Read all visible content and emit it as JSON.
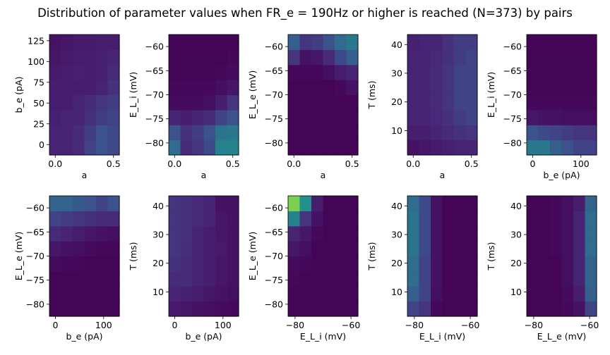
{
  "figure": {
    "title": "Distribution of parameter values when FR_e = 190Hz or higher is reached (N=373) by pairs"
  },
  "chart_data": [
    {
      "type": "heatmap",
      "xlabel": "a",
      "ylabel": "b_e (pA)",
      "xlim": [
        -0.05,
        0.55
      ],
      "ylim": [
        -12.5,
        132.5
      ],
      "xticks": [
        0.0,
        0.5
      ],
      "xticklabels": [
        "0.0",
        "0.5"
      ],
      "yticks": [
        0,
        25,
        50,
        75,
        100,
        125
      ],
      "yticklabels": [
        "0",
        "25",
        "50",
        "75",
        "100",
        "125"
      ],
      "z": [
        [
          0.1,
          0.1,
          0.12,
          0.2,
          0.25,
          0.22
        ],
        [
          0.1,
          0.1,
          0.12,
          0.18,
          0.25,
          0.22
        ],
        [
          0.09,
          0.1,
          0.1,
          0.14,
          0.18,
          0.2
        ],
        [
          0.08,
          0.08,
          0.1,
          0.12,
          0.15,
          0.18
        ],
        [
          0.08,
          0.08,
          0.08,
          0.08,
          0.1,
          0.14
        ],
        [
          0.07,
          0.08,
          0.09,
          0.08,
          0.09,
          0.12
        ],
        [
          0.06,
          0.07,
          0.08,
          0.08,
          0.09,
          0.1
        ],
        [
          0.05,
          0.06,
          0.07,
          0.07,
          0.08,
          0.08
        ]
      ]
    },
    {
      "type": "heatmap",
      "xlabel": "a",
      "ylabel": "E_L_i (mV)",
      "xlim": [
        -0.05,
        0.55
      ],
      "ylim": [
        -82.5,
        -57.5
      ],
      "xticks": [
        0.0,
        0.5
      ],
      "xticklabels": [
        "0.0",
        "0.5"
      ],
      "yticks": [
        -80,
        -75,
        -70,
        -65,
        -60
      ],
      "yticklabels": [
        "−80",
        "−75",
        "−70",
        "−65",
        "−60"
      ],
      "z": [
        [
          0.35,
          0.12,
          0.15,
          0.22,
          0.45,
          0.45
        ],
        [
          0.25,
          0.14,
          0.18,
          0.25,
          0.38,
          0.4
        ],
        [
          0.1,
          0.08,
          0.1,
          0.12,
          0.2,
          0.25
        ],
        [
          0.03,
          0.03,
          0.03,
          0.04,
          0.08,
          0.15
        ],
        [
          0.02,
          0.02,
          0.02,
          0.02,
          0.04,
          0.06
        ],
        [
          0.01,
          0.01,
          0.01,
          0.01,
          0.02,
          0.03
        ],
        [
          0.01,
          0.01,
          0.01,
          0.01,
          0.01,
          0.02
        ],
        [
          0.01,
          0.01,
          0.01,
          0.01,
          0.01,
          0.01
        ]
      ]
    },
    {
      "type": "heatmap",
      "xlabel": "a",
      "ylabel": "E_L_e (mV)",
      "xlim": [
        -0.05,
        0.55
      ],
      "ylim": [
        -82.5,
        -57.5
      ],
      "xticks": [
        0.0,
        0.5
      ],
      "xticklabels": [
        "0.0",
        "0.5"
      ],
      "yticks": [
        -80,
        -75,
        -70,
        -65,
        -60
      ],
      "yticklabels": [
        "−80",
        "−75",
        "−70",
        "−65",
        "−60"
      ],
      "z": [
        [
          0.01,
          0.01,
          0.01,
          0.01,
          0.01,
          0.01
        ],
        [
          0.01,
          0.01,
          0.01,
          0.01,
          0.01,
          0.01
        ],
        [
          0.01,
          0.01,
          0.01,
          0.01,
          0.01,
          0.01
        ],
        [
          0.01,
          0.01,
          0.01,
          0.01,
          0.01,
          0.01
        ],
        [
          0.01,
          0.01,
          0.01,
          0.01,
          0.02,
          0.05
        ],
        [
          0.02,
          0.02,
          0.02,
          0.04,
          0.08,
          0.1
        ],
        [
          0.15,
          0.05,
          0.06,
          0.12,
          0.22,
          0.3
        ],
        [
          0.3,
          0.15,
          0.18,
          0.25,
          0.35,
          0.4
        ]
      ]
    },
    {
      "type": "heatmap",
      "xlabel": "a",
      "ylabel": "T (ms)",
      "xlim": [
        -0.05,
        0.55
      ],
      "ylim": [
        1.5,
        43.5
      ],
      "xticks": [
        0.0,
        0.5
      ],
      "xticklabels": [
        "0.0",
        "0.5"
      ],
      "yticks": [
        10,
        20,
        30,
        40
      ],
      "yticklabels": [
        "10",
        "20",
        "30",
        "40"
      ],
      "z": [
        [
          0.05,
          0.06,
          0.07,
          0.09,
          0.1,
          0.1
        ],
        [
          0.08,
          0.08,
          0.1,
          0.12,
          0.14,
          0.15
        ],
        [
          0.1,
          0.1,
          0.11,
          0.14,
          0.18,
          0.2
        ],
        [
          0.1,
          0.1,
          0.12,
          0.15,
          0.2,
          0.2
        ],
        [
          0.1,
          0.1,
          0.12,
          0.15,
          0.2,
          0.2
        ],
        [
          0.1,
          0.1,
          0.12,
          0.15,
          0.2,
          0.2
        ],
        [
          0.1,
          0.1,
          0.11,
          0.14,
          0.18,
          0.2
        ],
        [
          0.09,
          0.1,
          0.1,
          0.14,
          0.18,
          0.18
        ]
      ]
    },
    {
      "type": "heatmap",
      "xlabel": "b_e (pA)",
      "ylabel": "E_L_i (mV)",
      "xlim": [
        -12.5,
        132.5
      ],
      "ylim": [
        -82.5,
        -57.5
      ],
      "xticks": [
        0,
        100
      ],
      "xticklabels": [
        "0",
        "100"
      ],
      "yticks": [
        -80,
        -75,
        -70,
        -65,
        -60
      ],
      "yticklabels": [
        "−80",
        "−75",
        "−70",
        "−65",
        "−60"
      ],
      "z": [
        [
          0.4,
          0.4,
          0.3,
          0.25,
          0.2,
          0.2
        ],
        [
          0.25,
          0.22,
          0.2,
          0.18,
          0.15,
          0.15
        ],
        [
          0.06,
          0.05,
          0.05,
          0.04,
          0.04,
          0.04
        ],
        [
          0.02,
          0.02,
          0.02,
          0.02,
          0.02,
          0.02
        ],
        [
          0.01,
          0.01,
          0.01,
          0.01,
          0.01,
          0.01
        ],
        [
          0.01,
          0.01,
          0.01,
          0.01,
          0.01,
          0.01
        ],
        [
          0.01,
          0.01,
          0.01,
          0.01,
          0.01,
          0.01
        ],
        [
          0.01,
          0.01,
          0.01,
          0.01,
          0.01,
          0.01
        ]
      ]
    },
    {
      "type": "heatmap",
      "xlabel": "b_e (pA)",
      "ylabel": "E_L_e (mV)",
      "xlim": [
        -12.5,
        132.5
      ],
      "ylim": [
        -82.5,
        -57.5
      ],
      "xticks": [
        0,
        100
      ],
      "xticklabels": [
        "0",
        "100"
      ],
      "yticks": [
        -80,
        -75,
        -70,
        -65,
        -60
      ],
      "yticklabels": [
        "−80",
        "−75",
        "−70",
        "−65",
        "−60"
      ],
      "z": [
        [
          0.01,
          0.01,
          0.01,
          0.01,
          0.01,
          0.01
        ],
        [
          0.01,
          0.01,
          0.01,
          0.01,
          0.01,
          0.01
        ],
        [
          0.01,
          0.01,
          0.01,
          0.01,
          0.01,
          0.01
        ],
        [
          0.03,
          0.02,
          0.02,
          0.01,
          0.01,
          0.01
        ],
        [
          0.06,
          0.05,
          0.04,
          0.03,
          0.02,
          0.02
        ],
        [
          0.12,
          0.1,
          0.08,
          0.06,
          0.05,
          0.04
        ],
        [
          0.2,
          0.18,
          0.16,
          0.14,
          0.12,
          0.12
        ],
        [
          0.32,
          0.32,
          0.28,
          0.25,
          0.2,
          0.25
        ]
      ]
    },
    {
      "type": "heatmap",
      "xlabel": "b_e (pA)",
      "ylabel": "T (ms)",
      "xlim": [
        -12.5,
        132.5
      ],
      "ylim": [
        1.5,
        43.5
      ],
      "xticks": [
        0,
        100
      ],
      "xticklabels": [
        "0",
        "100"
      ],
      "yticks": [
        10,
        20,
        30,
        40
      ],
      "yticklabels": [
        "10",
        "20",
        "30",
        "40"
      ],
      "z": [
        [
          0.07,
          0.06,
          0.05,
          0.04,
          0.03,
          0.02
        ],
        [
          0.1,
          0.09,
          0.08,
          0.06,
          0.05,
          0.04
        ],
        [
          0.12,
          0.12,
          0.1,
          0.08,
          0.06,
          0.05
        ],
        [
          0.14,
          0.12,
          0.1,
          0.08,
          0.06,
          0.05
        ],
        [
          0.15,
          0.13,
          0.1,
          0.08,
          0.07,
          0.05
        ],
        [
          0.15,
          0.14,
          0.1,
          0.08,
          0.06,
          0.05
        ],
        [
          0.15,
          0.14,
          0.12,
          0.1,
          0.06,
          0.05
        ],
        [
          0.15,
          0.14,
          0.12,
          0.1,
          0.05,
          0.05
        ]
      ]
    },
    {
      "type": "heatmap",
      "xlabel": "E_L_i (mV)",
      "ylabel": "E_L_e (mV)",
      "xlim": [
        -82.5,
        -57.5
      ],
      "ylim": [
        -82.5,
        -57.5
      ],
      "xticks": [
        -80,
        -60
      ],
      "xticklabels": [
        "−80",
        "−60"
      ],
      "yticks": [
        -80,
        -75,
        -70,
        -65,
        -60
      ],
      "yticklabels": [
        "−80",
        "−75",
        "−70",
        "−65",
        "−60"
      ],
      "z": [
        [
          0.01,
          0.01,
          0.01,
          0.01,
          0.01,
          0.01
        ],
        [
          0.01,
          0.01,
          0.01,
          0.01,
          0.01,
          0.01
        ],
        [
          0.02,
          0.01,
          0.01,
          0.01,
          0.01,
          0.01
        ],
        [
          0.03,
          0.02,
          0.01,
          0.01,
          0.01,
          0.01
        ],
        [
          0.06,
          0.04,
          0.01,
          0.01,
          0.01,
          0.01
        ],
        [
          0.1,
          0.06,
          0.02,
          0.01,
          0.01,
          0.01
        ],
        [
          0.45,
          0.15,
          0.05,
          0.01,
          0.01,
          0.01
        ],
        [
          0.8,
          0.5,
          0.08,
          0.01,
          0.01,
          0.01
        ]
      ]
    },
    {
      "type": "heatmap",
      "xlabel": "E_L_i (mV)",
      "ylabel": "T (ms)",
      "xlim": [
        -82.5,
        -57.5
      ],
      "ylim": [
        1.5,
        43.5
      ],
      "xticks": [
        -80,
        -60
      ],
      "xticklabels": [
        "−80",
        "−60"
      ],
      "yticks": [
        10,
        20,
        30,
        40
      ],
      "yticklabels": [
        "10",
        "20",
        "30",
        "40"
      ],
      "z": [
        [
          0.2,
          0.15,
          0.02,
          0.01,
          0.01,
          0.01
        ],
        [
          0.3,
          0.2,
          0.04,
          0.01,
          0.01,
          0.01
        ],
        [
          0.35,
          0.2,
          0.05,
          0.01,
          0.01,
          0.01
        ],
        [
          0.35,
          0.2,
          0.05,
          0.01,
          0.01,
          0.01
        ],
        [
          0.38,
          0.22,
          0.05,
          0.01,
          0.01,
          0.01
        ],
        [
          0.38,
          0.22,
          0.05,
          0.01,
          0.01,
          0.01
        ],
        [
          0.38,
          0.22,
          0.05,
          0.01,
          0.01,
          0.01
        ],
        [
          0.35,
          0.22,
          0.05,
          0.01,
          0.01,
          0.01
        ]
      ]
    },
    {
      "type": "heatmap",
      "xlabel": "E_L_e (mV)",
      "ylabel": "T (ms)",
      "xlim": [
        -82.5,
        -57.5
      ],
      "ylim": [
        1.5,
        43.5
      ],
      "xticks": [
        -80,
        -60
      ],
      "xticklabels": [
        "−80",
        "−60"
      ],
      "yticks": [
        10,
        20,
        30,
        40
      ],
      "yticklabels": [
        "10",
        "20",
        "30",
        "40"
      ],
      "z": [
        [
          0.01,
          0.01,
          0.01,
          0.02,
          0.05,
          0.2
        ],
        [
          0.01,
          0.01,
          0.01,
          0.03,
          0.08,
          0.3
        ],
        [
          0.01,
          0.01,
          0.01,
          0.04,
          0.1,
          0.32
        ],
        [
          0.01,
          0.01,
          0.01,
          0.04,
          0.1,
          0.32
        ],
        [
          0.01,
          0.01,
          0.02,
          0.04,
          0.1,
          0.35
        ],
        [
          0.01,
          0.01,
          0.02,
          0.04,
          0.1,
          0.35
        ],
        [
          0.01,
          0.01,
          0.02,
          0.04,
          0.1,
          0.35
        ],
        [
          0.01,
          0.01,
          0.02,
          0.04,
          0.08,
          0.32
        ]
      ]
    }
  ]
}
